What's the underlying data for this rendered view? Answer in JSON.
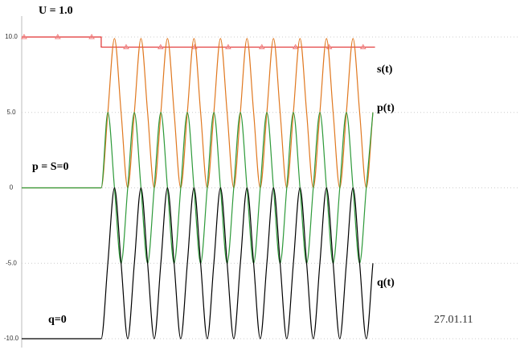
{
  "chart_data": {
    "type": "line",
    "annotations": [
      "U = 1.0",
      "p = S=0",
      "q=0",
      "27.01.11"
    ],
    "x": [
      0,
      3,
      3.25,
      3.5,
      3.75,
      4,
      4.25,
      4.5,
      4.75,
      5,
      5.25,
      5.5,
      5.75,
      6,
      6.25,
      6.5,
      6.75,
      7,
      7.25,
      7.5,
      7.75,
      8,
      8.25,
      8.5,
      8.75,
      9,
      9.25,
      9.5,
      9.75,
      10,
      10.25,
      10.5,
      10.75,
      11,
      11.25,
      11.5,
      11.75,
      12,
      12.25,
      12.5,
      12.75,
      13,
      13.25
    ],
    "xlim": [
      0,
      18.8
    ],
    "ylim": [
      -10,
      10
    ],
    "yticks": [
      {
        "value": 10,
        "label": "10.0"
      },
      {
        "value": 5,
        "label": "5.0"
      },
      0,
      {
        "value": -5,
        "label": "-5.0"
      },
      {
        "value": -10,
        "label": "-10.0"
      }
    ],
    "grid": true,
    "series": [
      {
        "color": "#e03030",
        "x": [
          0,
          3,
          3,
          13.33
        ],
        "values": [
          10,
          10,
          9.33,
          9.33
        ]
      },
      {
        "color": "#f08080",
        "marker": "triangle",
        "line": false,
        "x": [
          0.09,
          1.36,
          2.64,
          3.94,
          5.24,
          6.52,
          7.79,
          9.06,
          10.33,
          11.6,
          12.88
        ],
        "values": [
          10,
          10,
          10,
          9.33,
          9.33,
          9.33,
          9.33,
          9.33,
          9.33,
          9.33,
          9.33
        ]
      },
      {
        "name": "s(t)",
        "color": "#e07820",
        "smooth": true,
        "values": [
          0,
          0,
          5,
          9.9,
          5,
          0,
          5,
          9.9,
          5,
          0,
          5,
          9.9,
          5,
          0,
          5,
          9.9,
          5,
          0,
          5,
          9.9,
          5,
          0,
          5,
          9.9,
          5,
          0,
          5,
          9.9,
          5,
          0,
          5,
          9.9,
          5,
          0,
          5,
          9.9,
          5,
          0,
          5,
          9.9,
          5,
          0,
          5
        ]
      },
      {
        "name": "p(t)",
        "color": "#2e9a3a",
        "smooth": true,
        "values": [
          0,
          0,
          5,
          0,
          -5,
          0,
          5,
          0,
          -5,
          0,
          5,
          0,
          -5,
          0,
          5,
          0,
          -5,
          0,
          5,
          0,
          -5,
          0,
          5,
          0,
          -5,
          0,
          5,
          0,
          -5,
          0,
          5,
          0,
          -5,
          0,
          5,
          0,
          -5,
          0,
          5,
          0,
          -5,
          0,
          5
        ]
      },
      {
        "name": "q(t)",
        "color": "#000000",
        "smooth": true,
        "values": [
          -10,
          -10,
          -5,
          0,
          -5,
          -10,
          -5,
          0,
          -5,
          -10,
          -5,
          0,
          -5,
          -10,
          -5,
          0,
          -5,
          -10,
          -5,
          0,
          -5,
          -10,
          -5,
          0,
          -5,
          -10,
          -5,
          0,
          -5,
          -10,
          -5,
          0,
          -5,
          -10,
          -5,
          0,
          -5,
          -10,
          -5,
          0,
          -5,
          -10,
          -5
        ]
      }
    ]
  }
}
